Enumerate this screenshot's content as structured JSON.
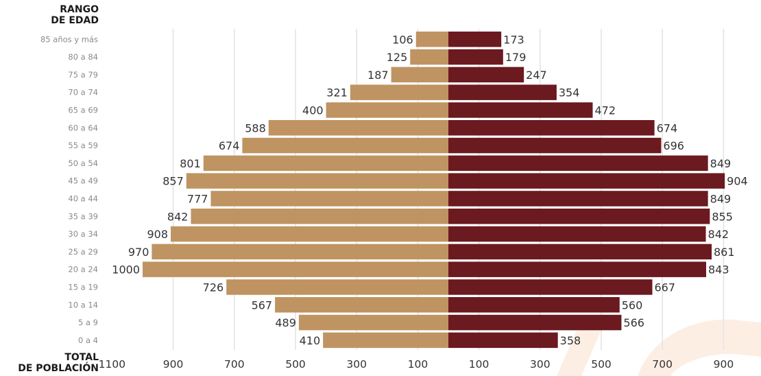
{
  "chart_data": {
    "type": "bar",
    "orientation": "horizontal-diverging",
    "y_header": [
      "RANGO",
      "DE EDAD"
    ],
    "x_header": [
      "TOTAL",
      "DE POBLACIÓN"
    ],
    "categories": [
      "85 años y más",
      "80 a 84",
      "75 a 79",
      "70 a 74",
      "65 a 69",
      "60 a 64",
      "55 a 59",
      "50 a 54",
      "45 a 49",
      "40 a 44",
      "35 a 39",
      "30 a 34",
      "25 a 29",
      "20 a 24",
      "15 a 19",
      "10 a 14",
      "5 a 9",
      "0 a 4"
    ],
    "series": [
      {
        "color": "#bf9462",
        "side": "left",
        "values": [
          106,
          125,
          187,
          321,
          400,
          588,
          674,
          801,
          857,
          777,
          842,
          908,
          970,
          1000,
          726,
          567,
          489,
          410
        ]
      },
      {
        "color": "#6b1a1f",
        "side": "right",
        "values": [
          173,
          179,
          247,
          354,
          472,
          674,
          696,
          849,
          904,
          849,
          855,
          842,
          861,
          843,
          667,
          560,
          566,
          358
        ]
      }
    ],
    "x_ticks_left": [
      "1100",
      "900",
      "700",
      "500",
      "300",
      "100"
    ],
    "x_ticks_right": [
      "100",
      "300",
      "500",
      "700",
      "900"
    ],
    "xlim": [
      -1000,
      900
    ],
    "grid": true
  }
}
